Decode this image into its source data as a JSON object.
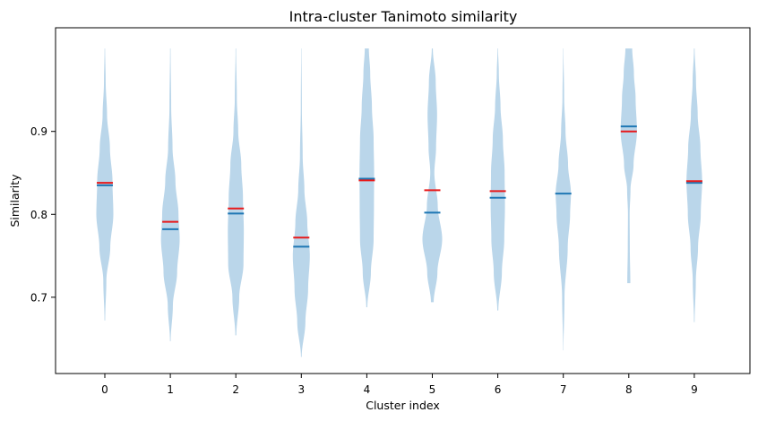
{
  "chart_data": {
    "type": "violin",
    "title": "Intra-cluster Tanimoto similarity",
    "xlabel": "Cluster index",
    "ylabel": "Similarity",
    "ylim": [
      0.608,
      1.025
    ],
    "y_ticks": [
      0.7,
      0.8,
      0.9
    ],
    "y_tick_labels": [
      "0.7",
      "0.8",
      "0.9"
    ],
    "categories": [
      "0",
      "1",
      "2",
      "3",
      "4",
      "5",
      "6",
      "7",
      "8",
      "9"
    ],
    "colors": {
      "violin": "#bad6ea",
      "median": "#1f77b4",
      "mean": "#e8191a",
      "axis": "#000000"
    },
    "violins": [
      {
        "cluster": "0",
        "min": 0.672,
        "max": 1.0,
        "median": 0.835,
        "mean": 0.838,
        "profile": [
          [
            0.672,
            0.02
          ],
          [
            0.72,
            0.09
          ],
          [
            0.76,
            0.32
          ],
          [
            0.8,
            0.5
          ],
          [
            0.84,
            0.45
          ],
          [
            0.88,
            0.3
          ],
          [
            0.92,
            0.13
          ],
          [
            0.96,
            0.05
          ],
          [
            1.0,
            0.015
          ]
        ]
      },
      {
        "cluster": "1",
        "min": 0.647,
        "max": 1.0,
        "median": 0.782,
        "mean": 0.791,
        "profile": [
          [
            0.647,
            0.02
          ],
          [
            0.69,
            0.15
          ],
          [
            0.73,
            0.4
          ],
          [
            0.77,
            0.55
          ],
          [
            0.8,
            0.48
          ],
          [
            0.84,
            0.3
          ],
          [
            0.88,
            0.13
          ],
          [
            0.93,
            0.05
          ],
          [
            1.0,
            0.015
          ]
        ]
      },
      {
        "cluster": "2",
        "min": 0.654,
        "max": 1.0,
        "median": 0.801,
        "mean": 0.807,
        "profile": [
          [
            0.654,
            0.03
          ],
          [
            0.7,
            0.2
          ],
          [
            0.74,
            0.45
          ],
          [
            0.78,
            0.47
          ],
          [
            0.82,
            0.42
          ],
          [
            0.86,
            0.32
          ],
          [
            0.9,
            0.14
          ],
          [
            0.94,
            0.06
          ],
          [
            1.0,
            0.015
          ]
        ]
      },
      {
        "cluster": "3",
        "min": 0.628,
        "max": 1.0,
        "median": 0.761,
        "mean": 0.772,
        "profile": [
          [
            0.628,
            0.02
          ],
          [
            0.67,
            0.24
          ],
          [
            0.71,
            0.4
          ],
          [
            0.75,
            0.5
          ],
          [
            0.79,
            0.35
          ],
          [
            0.83,
            0.18
          ],
          [
            0.87,
            0.08
          ],
          [
            0.93,
            0.03
          ],
          [
            1.0,
            0.01
          ]
        ]
      },
      {
        "cluster": "4",
        "min": 0.688,
        "max": 1.0,
        "median": 0.843,
        "mean": 0.841,
        "profile": [
          [
            0.688,
            0.03
          ],
          [
            0.73,
            0.24
          ],
          [
            0.77,
            0.4
          ],
          [
            0.81,
            0.42
          ],
          [
            0.85,
            0.43
          ],
          [
            0.89,
            0.4
          ],
          [
            0.93,
            0.3
          ],
          [
            0.97,
            0.2
          ],
          [
            1.0,
            0.12
          ]
        ]
      },
      {
        "cluster": "5",
        "min": 0.694,
        "max": 1.0,
        "median": 0.802,
        "mean": 0.829,
        "profile": [
          [
            0.694,
            0.08
          ],
          [
            0.73,
            0.3
          ],
          [
            0.77,
            0.58
          ],
          [
            0.81,
            0.32
          ],
          [
            0.85,
            0.12
          ],
          [
            0.88,
            0.22
          ],
          [
            0.92,
            0.28
          ],
          [
            0.96,
            0.2
          ],
          [
            1.0,
            0.03
          ]
        ]
      },
      {
        "cluster": "6",
        "min": 0.684,
        "max": 1.0,
        "median": 0.82,
        "mean": 0.828,
        "profile": [
          [
            0.684,
            0.03
          ],
          [
            0.73,
            0.24
          ],
          [
            0.77,
            0.38
          ],
          [
            0.81,
            0.42
          ],
          [
            0.85,
            0.4
          ],
          [
            0.89,
            0.3
          ],
          [
            0.93,
            0.16
          ],
          [
            0.97,
            0.06
          ],
          [
            1.0,
            0.015
          ]
        ]
      },
      {
        "cluster": "7",
        "min": 0.636,
        "max": 1.0,
        "median": 0.825,
        "mean": 0.825,
        "profile": [
          [
            0.636,
            0.01
          ],
          [
            0.7,
            0.07
          ],
          [
            0.76,
            0.26
          ],
          [
            0.8,
            0.4
          ],
          [
            0.825,
            0.45
          ],
          [
            0.86,
            0.28
          ],
          [
            0.9,
            0.13
          ],
          [
            0.94,
            0.05
          ],
          [
            1.0,
            0.01
          ]
        ]
      },
      {
        "cluster": "8",
        "min": 0.717,
        "max": 1.0,
        "median": 0.906,
        "mean": 0.9,
        "profile": [
          [
            0.717,
            0.09
          ],
          [
            0.76,
            0.06
          ],
          [
            0.8,
            0.05
          ],
          [
            0.83,
            0.1
          ],
          [
            0.86,
            0.28
          ],
          [
            0.9,
            0.48
          ],
          [
            0.94,
            0.4
          ],
          [
            0.97,
            0.3
          ],
          [
            1.0,
            0.2
          ]
        ]
      },
      {
        "cluster": "9",
        "min": 0.67,
        "max": 1.0,
        "median": 0.838,
        "mean": 0.84,
        "profile": [
          [
            0.67,
            0.02
          ],
          [
            0.72,
            0.09
          ],
          [
            0.76,
            0.22
          ],
          [
            0.8,
            0.38
          ],
          [
            0.84,
            0.46
          ],
          [
            0.88,
            0.36
          ],
          [
            0.92,
            0.2
          ],
          [
            0.96,
            0.1
          ],
          [
            1.0,
            0.02
          ]
        ]
      }
    ]
  }
}
